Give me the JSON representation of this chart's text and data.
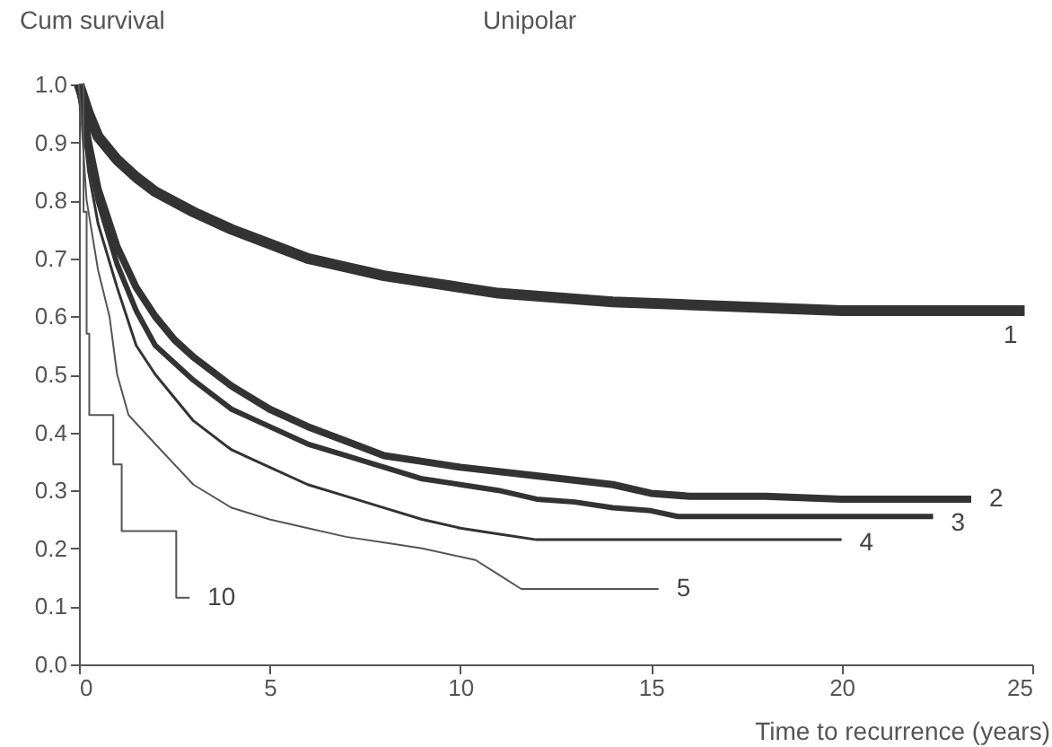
{
  "chart_data": {
    "type": "line",
    "title": "Unipolar",
    "xlabel": "Time to recurrence (years)",
    "ylabel": "Cum survival",
    "xlim": [
      0,
      25
    ],
    "xticks": [
      0,
      5,
      10,
      15,
      20,
      25
    ],
    "ylim": [
      0,
      1
    ],
    "yticks": [
      {
        "value": 0,
        "label": "0.0"
      },
      0.1,
      0.2,
      0.3,
      0.4,
      0.5,
      0.6,
      0.7,
      0.8,
      0.9,
      {
        "value": 1,
        "label": "1.0"
      }
    ],
    "grid": false,
    "series": [
      {
        "name": "1",
        "color": "#333333",
        "x": [
          0,
          0.25,
          0.5,
          1,
          1.5,
          2,
          3,
          4,
          5,
          6,
          7,
          8,
          9,
          10,
          11,
          12,
          14,
          16,
          18,
          20,
          24.8
        ],
        "values": [
          1,
          0.95,
          0.91,
          0.87,
          0.84,
          0.815,
          0.78,
          0.75,
          0.725,
          0.7,
          0.685,
          0.67,
          0.66,
          0.65,
          0.64,
          0.635,
          0.625,
          0.62,
          0.615,
          0.61,
          0.61
        ]
      },
      {
        "name": "2",
        "color": "#333333",
        "x": [
          0,
          0.25,
          0.5,
          1,
          1.5,
          2,
          2.5,
          3,
          4,
          5,
          6,
          7,
          8,
          9,
          10,
          12,
          14,
          15,
          16,
          18,
          20,
          23.4
        ],
        "values": [
          1,
          0.9,
          0.82,
          0.72,
          0.65,
          0.6,
          0.56,
          0.53,
          0.48,
          0.44,
          0.41,
          0.385,
          0.36,
          0.35,
          0.34,
          0.325,
          0.31,
          0.295,
          0.29,
          0.29,
          0.285,
          0.285
        ]
      },
      {
        "name": "3",
        "color": "#333333",
        "x": [
          0,
          0.25,
          0.5,
          1,
          1.5,
          2,
          3,
          4,
          5,
          6,
          7,
          8,
          9,
          10,
          11,
          12,
          13,
          14,
          15,
          15.7,
          22.4
        ],
        "values": [
          1,
          0.88,
          0.8,
          0.69,
          0.61,
          0.55,
          0.49,
          0.44,
          0.41,
          0.38,
          0.36,
          0.34,
          0.32,
          0.31,
          0.3,
          0.285,
          0.28,
          0.27,
          0.265,
          0.255,
          0.255
        ]
      },
      {
        "name": "4",
        "color": "#333333",
        "x": [
          0,
          0.25,
          0.5,
          1,
          1.5,
          2,
          3,
          4,
          5,
          6,
          7,
          8,
          9,
          10,
          11,
          12,
          15,
          20
        ],
        "values": [
          1,
          0.85,
          0.76,
          0.65,
          0.55,
          0.5,
          0.42,
          0.37,
          0.34,
          0.31,
          0.29,
          0.27,
          0.25,
          0.235,
          0.225,
          0.215,
          0.215,
          0.215
        ]
      },
      {
        "name": "5",
        "color": "#555555",
        "x": [
          0,
          0.2,
          0.5,
          0.8,
          1,
          1.3,
          2,
          3,
          4,
          5,
          6,
          7,
          8,
          9,
          10.4,
          11,
          11.6,
          15.2
        ],
        "values": [
          1,
          0.8,
          0.68,
          0.6,
          0.5,
          0.43,
          0.38,
          0.31,
          0.27,
          0.25,
          0.235,
          0.22,
          0.21,
          0.2,
          0.18,
          0.155,
          0.13,
          0.13
        ]
      },
      {
        "name": "10",
        "color": "#555555",
        "type": "step",
        "x": [
          0,
          0.12,
          0.2,
          0.27,
          0.9,
          1.12,
          2.55,
          2.9
        ],
        "values": [
          1,
          0.78,
          0.57,
          0.43,
          0.345,
          0.23,
          0.115,
          0.115
        ]
      }
    ]
  }
}
